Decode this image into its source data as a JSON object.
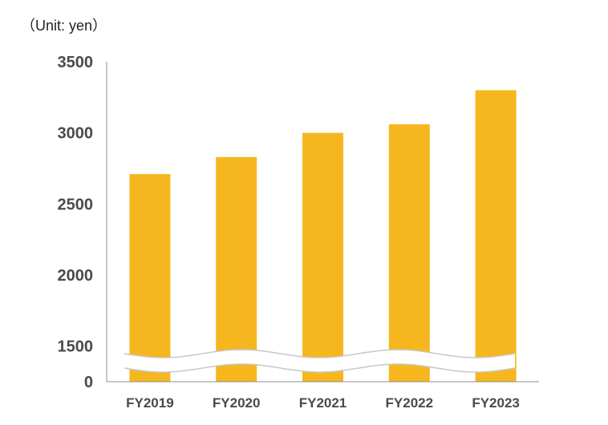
{
  "unit_label": "（Unit: yen）",
  "colors": {
    "bar": "#F6B71E",
    "axis": "#8c8c8c",
    "break_fill": "#ffffff",
    "break_stroke": "#c8c8c8"
  },
  "chart_data": {
    "type": "bar",
    "categories": [
      "FY2019",
      "FY2020",
      "FY2021",
      "FY2022",
      "FY2023"
    ],
    "values": [
      2710,
      2830,
      3000,
      3060,
      3300
    ],
    "ylim": [
      1250,
      3500
    ],
    "y_ticks": [
      0,
      1500,
      2000,
      2500,
      3000,
      3500
    ],
    "axis_break": {
      "from": 0,
      "to": 1250
    },
    "grid": false,
    "title": "",
    "xlabel": "",
    "ylabel": ""
  }
}
